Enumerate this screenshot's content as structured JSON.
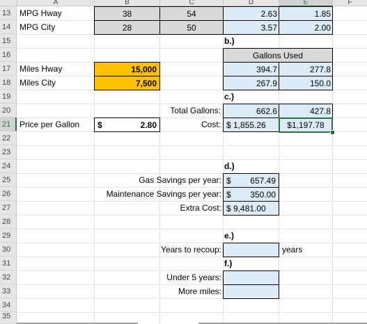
{
  "columns": [
    "A",
    "B",
    "C",
    "D",
    "E",
    "F"
  ],
  "rows": [
    "13",
    "14",
    "15",
    "16",
    "17",
    "18",
    "19",
    "20",
    "21",
    "22",
    "23",
    "24",
    "25",
    "26",
    "27",
    "28",
    "29",
    "30",
    "31",
    "32",
    "33",
    "34",
    "35"
  ],
  "mpg": {
    "hway_label": "MPG Hway",
    "hway_b": "38",
    "hway_c": "54",
    "hway_d": "2.63",
    "hway_e": "1.85",
    "city_label": "MPG City",
    "city_b": "28",
    "city_c": "50",
    "city_d": "3.57",
    "city_e": "2.00"
  },
  "miles": {
    "hway_label": "Miles Hway",
    "hway_value": "15,000",
    "city_label": "Miles City",
    "city_value": "7,500"
  },
  "gallons": {
    "section_b": "b.)",
    "header": "Gallons Used",
    "hway_d": "394.7",
    "hway_e": "277.8",
    "city_d": "267.9",
    "city_e": "150.0"
  },
  "totals": {
    "section_c": "c.)",
    "total_label": "Total Gallons:",
    "total_d": "662.6",
    "total_e": "427.8",
    "cost_label": "Cost:",
    "cost_d": "$ 1,855.26",
    "cost_e": "$1,197.78"
  },
  "price": {
    "label": "Price per Gallon",
    "currency": "$",
    "value": "2.80"
  },
  "savings": {
    "section_d": "d.)",
    "gas_label": "Gas Savings per year:",
    "gas_currency": "$",
    "gas_value": "657.49",
    "maint_label": "Maintenance Savings per year:",
    "maint_currency": "$",
    "maint_value": "350.00",
    "extra_label": "Extra Cost:",
    "extra_value": "$ 9,481.00"
  },
  "recoup": {
    "section_e": "e.)",
    "years_label": "Years to recoup:",
    "years_value": "",
    "years_unit": "years",
    "section_f": "f.)",
    "under5_label": "Under 5 years:",
    "under5_value": "",
    "more_miles_label": "More miles:",
    "more_miles_value": ""
  },
  "colors": {
    "excel_green": "#217346",
    "input_orange": "#ffc000",
    "calc_blue": "#ddebf7",
    "gray_fill": "#d9d9d9"
  }
}
